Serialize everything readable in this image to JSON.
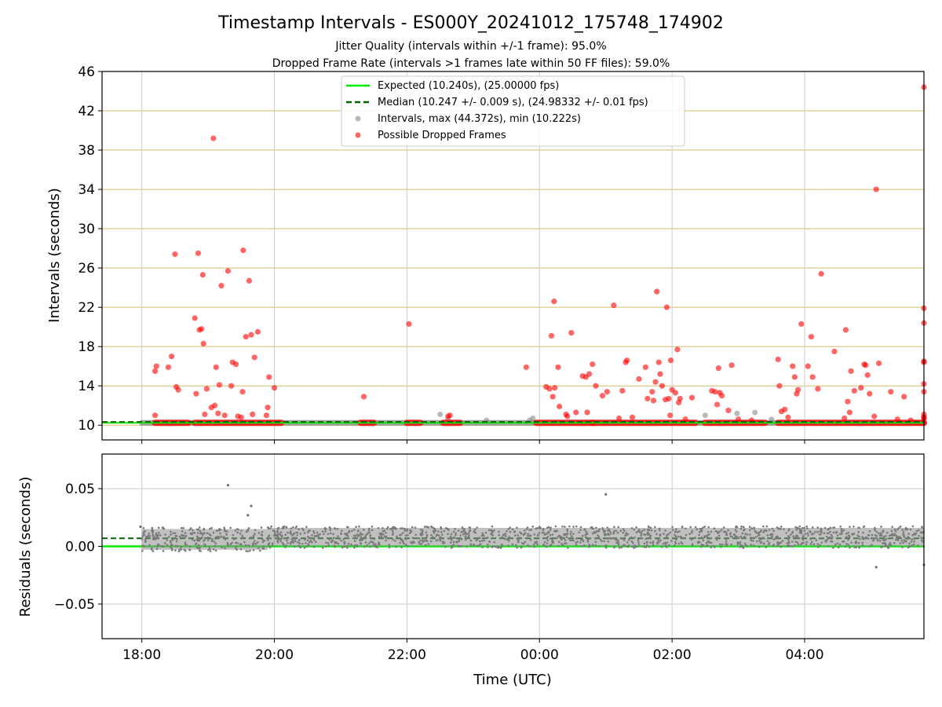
{
  "chart_data": {
    "type": "scatter",
    "title": "Timestamp Intervals - ES000Y_20241012_175748_174902",
    "subtitles": [
      "Jitter Quality (intervals within +/-1 frame): 95.0%",
      "Dropped Frame Rate (intervals >1 frames late within 50 FF files): 59.0%"
    ],
    "xlabel": "Time (UTC)",
    "x_ticks": [
      "18:00",
      "20:00",
      "22:00",
      "00:00",
      "02:00",
      "04:00"
    ],
    "x_range_hours": [
      17.4,
      29.8
    ],
    "grid": true,
    "panels": [
      {
        "name": "intervals",
        "ylabel": "Intervals (seconds)",
        "ylim": [
          8.5,
          46
        ],
        "y_ticks": [
          10,
          14,
          18,
          22,
          26,
          30,
          34,
          38,
          42,
          46
        ],
        "legend_position": "top-center",
        "legend": [
          "Expected (10.240s), (25.00000 fps)",
          "Median (10.247 +/- 0.009 s), (24.98332 +/- 0.01 fps)",
          "Intervals, max (44.372s), min (10.222s)",
          "Possible Dropped Frames"
        ],
        "expected_value": 10.24,
        "median_value": 10.247,
        "series": [
          {
            "name": "Possible Dropped Frames",
            "color": "#ff0000",
            "points": [
              [
                18.2,
                11.0
              ],
              [
                18.2,
                15.5
              ],
              [
                18.22,
                16.0
              ],
              [
                18.4,
                15.9
              ],
              [
                18.45,
                17.0
              ],
              [
                18.5,
                27.4
              ],
              [
                18.52,
                13.9
              ],
              [
                18.55,
                13.6
              ],
              [
                18.8,
                20.9
              ],
              [
                18.82,
                13.2
              ],
              [
                18.85,
                27.5
              ],
              [
                18.87,
                19.7
              ],
              [
                18.9,
                19.8
              ],
              [
                18.92,
                25.3
              ],
              [
                18.93,
                18.3
              ],
              [
                18.95,
                11.1
              ],
              [
                18.98,
                13.7
              ],
              [
                19.05,
                11.8
              ],
              [
                19.08,
                39.2
              ],
              [
                19.1,
                12.0
              ],
              [
                19.12,
                15.9
              ],
              [
                19.15,
                11.2
              ],
              [
                19.17,
                14.1
              ],
              [
                19.2,
                24.2
              ],
              [
                19.25,
                11.0
              ],
              [
                19.3,
                25.7
              ],
              [
                19.35,
                14.0
              ],
              [
                19.37,
                16.4
              ],
              [
                19.42,
                16.2
              ],
              [
                19.45,
                10.9
              ],
              [
                19.5,
                10.8
              ],
              [
                19.52,
                13.4
              ],
              [
                19.53,
                27.8
              ],
              [
                19.57,
                19.0
              ],
              [
                19.62,
                24.7
              ],
              [
                19.65,
                19.2
              ],
              [
                19.67,
                11.1
              ],
              [
                19.7,
                16.9
              ],
              [
                19.75,
                19.5
              ],
              [
                19.88,
                11.0
              ],
              [
                19.9,
                11.8
              ],
              [
                19.92,
                14.9
              ],
              [
                20.0,
                13.8
              ],
              [
                21.35,
                12.9
              ],
              [
                22.03,
                20.3
              ],
              [
                22.62,
                10.9
              ],
              [
                22.65,
                11.0
              ],
              [
                23.8,
                15.9
              ],
              [
                24.1,
                13.9
              ],
              [
                24.15,
                13.7
              ],
              [
                24.18,
                19.1
              ],
              [
                24.2,
                12.9
              ],
              [
                24.22,
                22.6
              ],
              [
                24.23,
                13.8
              ],
              [
                24.3,
                11.9
              ],
              [
                24.28,
                15.9
              ],
              [
                24.4,
                11.1
              ],
              [
                24.42,
                10.9
              ],
              [
                24.48,
                19.4
              ],
              [
                24.55,
                11.3
              ],
              [
                24.65,
                15.0
              ],
              [
                24.7,
                14.9
              ],
              [
                24.72,
                11.3
              ],
              [
                24.75,
                15.2
              ],
              [
                24.8,
                16.2
              ],
              [
                24.85,
                14.0
              ],
              [
                24.95,
                13.0
              ],
              [
                25.02,
                13.4
              ],
              [
                25.12,
                22.2
              ],
              [
                25.2,
                10.7
              ],
              [
                25.25,
                13.5
              ],
              [
                25.3,
                16.4
              ],
              [
                25.32,
                16.6
              ],
              [
                25.4,
                10.8
              ],
              [
                25.5,
                14.7
              ],
              [
                25.6,
                15.9
              ],
              [
                25.63,
                12.7
              ],
              [
                25.7,
                13.4
              ],
              [
                25.72,
                12.5
              ],
              [
                25.75,
                14.4
              ],
              [
                25.77,
                23.6
              ],
              [
                25.8,
                16.4
              ],
              [
                25.82,
                15.2
              ],
              [
                25.85,
                14.0
              ],
              [
                25.9,
                12.6
              ],
              [
                25.92,
                22.0
              ],
              [
                25.95,
                12.7
              ],
              [
                25.97,
                11.0
              ],
              [
                25.98,
                16.6
              ],
              [
                26.05,
                13.3
              ],
              [
                26.0,
                13.6
              ],
              [
                26.08,
                17.7
              ],
              [
                26.1,
                12.3
              ],
              [
                26.12,
                12.7
              ],
              [
                26.2,
                10.6
              ],
              [
                26.3,
                12.8
              ],
              [
                26.6,
                13.5
              ],
              [
                26.65,
                13.4
              ],
              [
                26.68,
                12.1
              ],
              [
                26.7,
                15.8
              ],
              [
                26.72,
                13.3
              ],
              [
                26.75,
                13.0
              ],
              [
                26.85,
                11.5
              ],
              [
                26.9,
                16.1
              ],
              [
                27.0,
                10.6
              ],
              [
                27.2,
                10.5
              ],
              [
                27.6,
                16.7
              ],
              [
                27.62,
                14.0
              ],
              [
                27.65,
                11.4
              ],
              [
                27.7,
                11.6
              ],
              [
                27.75,
                10.8
              ],
              [
                27.82,
                16.0
              ],
              [
                27.85,
                14.9
              ],
              [
                27.88,
                13.2
              ],
              [
                27.9,
                13.6
              ],
              [
                27.95,
                20.3
              ],
              [
                28.05,
                16.0
              ],
              [
                28.1,
                19.0
              ],
              [
                28.12,
                14.9
              ],
              [
                28.2,
                13.7
              ],
              [
                28.25,
                25.4
              ],
              [
                28.45,
                17.5
              ],
              [
                28.6,
                10.7
              ],
              [
                28.62,
                19.7
              ],
              [
                28.65,
                12.4
              ],
              [
                28.68,
                11.3
              ],
              [
                28.7,
                15.5
              ],
              [
                28.75,
                13.5
              ],
              [
                28.85,
                13.8
              ],
              [
                28.9,
                16.2
              ],
              [
                28.92,
                16.1
              ],
              [
                28.95,
                15.1
              ],
              [
                28.98,
                13.2
              ],
              [
                29.05,
                10.9
              ],
              [
                29.08,
                34.0
              ],
              [
                29.12,
                16.3
              ],
              [
                29.3,
                13.4
              ],
              [
                29.4,
                10.6
              ],
              [
                29.5,
                12.9
              ],
              [
                29.6,
                10.5
              ],
              [
                29.8,
                13.4
              ],
              [
                29.85,
                14.2
              ],
              [
                29.88,
                10.8
              ],
              [
                29.9,
                16.4
              ],
              [
                29.92,
                44.4
              ],
              [
                29.95,
                20.4
              ],
              [
                29.97,
                21.9
              ],
              [
                29.98,
                10.8
              ],
              [
                30.0,
                16.5
              ],
              [
                29.97,
                11.1
              ],
              [
                29.99,
                10.6
              ]
            ],
            "dense_runs_at_expected": [
              [
                18.2,
                18.7
              ],
              [
                18.8,
                20.1
              ],
              [
                21.3,
                21.5
              ],
              [
                22.0,
                22.2
              ],
              [
                22.55,
                22.8
              ],
              [
                23.95,
                24.8
              ],
              [
                24.8,
                26.35
              ],
              [
                26.5,
                27.4
              ],
              [
                27.6,
                29.8
              ]
            ]
          },
          {
            "name": "Intervals, max (44.372s), min (10.222s)",
            "color": "#808080",
            "points": [
              [
                22.5,
                11.1
              ],
              [
                22.62,
                10.6
              ],
              [
                23.2,
                10.5
              ],
              [
                23.85,
                10.5
              ],
              [
                23.9,
                10.7
              ],
              [
                26.5,
                11.0
              ],
              [
                26.98,
                11.2
              ],
              [
                27.25,
                11.3
              ],
              [
                27.5,
                10.6
              ]
            ],
            "dense_runs_at_expected": [
              [
                18.0,
                29.8
              ]
            ]
          }
        ]
      },
      {
        "name": "residuals",
        "ylabel": "Residuals (seconds)",
        "ylim": [
          -0.08,
          0.08
        ],
        "y_ticks": [
          0.05,
          0.0,
          -0.05
        ],
        "y_tick_labels": [
          "0.05",
          "0.00",
          "−0.05"
        ],
        "expected_value": 0.0,
        "median_value": 0.007,
        "band_early": {
          "range_hours": [
            18.0,
            19.9
          ],
          "min": -0.003,
          "max": 0.015
        },
        "band_late": {
          "range_hours": [
            19.9,
            29.8
          ],
          "min": 0.0,
          "max": 0.016
        },
        "outliers": [
          [
            17.98,
            0.017
          ],
          [
            19.3,
            0.053
          ],
          [
            19.65,
            0.035
          ],
          [
            19.6,
            0.027
          ],
          [
            25.0,
            0.045
          ],
          [
            29.08,
            -0.018
          ],
          [
            29.85,
            -0.016
          ]
        ]
      }
    ]
  }
}
